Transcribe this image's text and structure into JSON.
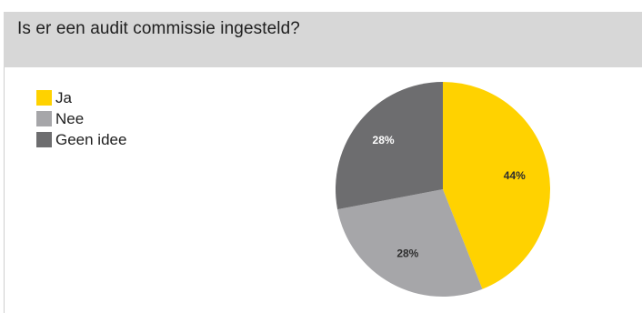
{
  "header": {
    "title": "Is er een audit commissie ingesteld?"
  },
  "chart_data": {
    "type": "pie",
    "title": "Is er een audit commissie ingesteld?",
    "legend_position": "top-left",
    "slices": [
      {
        "name": "Ja",
        "value": 44,
        "label": "44%",
        "color": "#ffd200",
        "label_color": "#2e2e2e"
      },
      {
        "name": "Nee",
        "value": 28,
        "label": "28%",
        "color": "#a6a6a9",
        "label_color": "#2e2e2e"
      },
      {
        "name": "Geen idee",
        "value": 28,
        "label": "28%",
        "color": "#6d6d6f",
        "label_color": "#ffffff"
      }
    ]
  }
}
